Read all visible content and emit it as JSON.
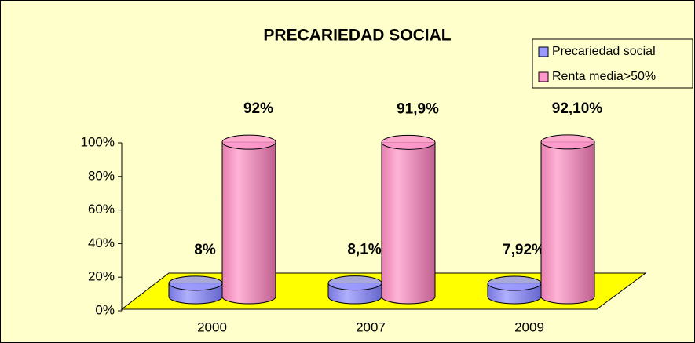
{
  "chart_data": {
    "type": "bar3d-cylinder",
    "title": "PRECARIEDAD SOCIAL",
    "categories": [
      "2000",
      "2007",
      "2009"
    ],
    "series": [
      {
        "name": "Precariedad social",
        "color": "#9999ff",
        "values": [
          8,
          8.1,
          7.92
        ],
        "value_labels": [
          "8%",
          "8,1%",
          "7,92%"
        ]
      },
      {
        "name": "Renta media>50%",
        "color": "#ff99cc",
        "values": [
          92,
          91.9,
          92.1
        ],
        "value_labels": [
          "92%",
          "91,9%",
          "92,10%"
        ]
      }
    ],
    "ylim": [
      0,
      100
    ],
    "yticks": [
      {
        "value": 0,
        "label": "0%"
      },
      {
        "value": 20,
        "label": "20%"
      },
      {
        "value": 40,
        "label": "40%"
      },
      {
        "value": 60,
        "label": "60%"
      },
      {
        "value": 80,
        "label": "80%"
      },
      {
        "value": 100,
        "label": "100%"
      }
    ],
    "legend": "top-right"
  }
}
